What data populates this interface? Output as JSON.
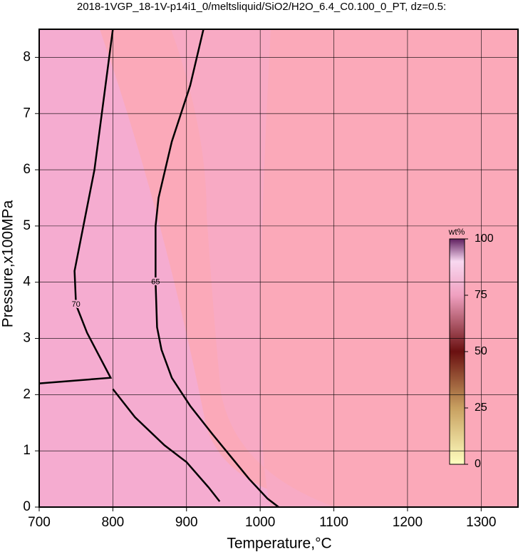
{
  "chart_data": {
    "type": "contour",
    "title": "2018-1VGP_18-1V-p14i1_0/meltsliquid/SiO2/H2O_6.4_C0.100_0_PT, dz=0.5:",
    "x_label": "Temperature,°C",
    "y_label": "Pressure,x100MPa",
    "xlim": [
      700,
      1350
    ],
    "ylim": [
      0,
      8.5
    ],
    "xticks": [
      700,
      800,
      900,
      1000,
      1100,
      1200,
      1300
    ],
    "yticks": [
      0,
      1,
      2,
      3,
      4,
      5,
      6,
      7,
      8
    ],
    "grid": true,
    "series": [
      {
        "name": "70",
        "color": "#000000",
        "x": [
          800,
          790,
          775,
          760,
          748,
          750,
          765,
          785,
          797,
          700,
          null,
          800,
          830,
          870,
          900,
          930,
          945
        ],
        "y": [
          8.5,
          7.5,
          6,
          5,
          4.2,
          3.6,
          3.1,
          2.6,
          2.3,
          2.2,
          null,
          2.1,
          1.6,
          1.1,
          0.8,
          0.35,
          0.1
        ]
      },
      {
        "name": "65",
        "color": "#000000",
        "x": [
          923,
          905,
          880,
          862,
          858,
          858,
          860,
          866,
          880,
          905,
          935,
          960,
          985,
          1010,
          1025
        ],
        "y": [
          8.5,
          7.5,
          6.5,
          5.5,
          5,
          4,
          3.2,
          2.8,
          2.3,
          1.8,
          1.3,
          0.9,
          0.5,
          0.15,
          0
        ]
      }
    ],
    "colorbar": {
      "label": "wt%",
      "lim": [
        0,
        100
      ],
      "ticks": [
        0,
        25,
        50,
        75,
        100
      ]
    }
  }
}
